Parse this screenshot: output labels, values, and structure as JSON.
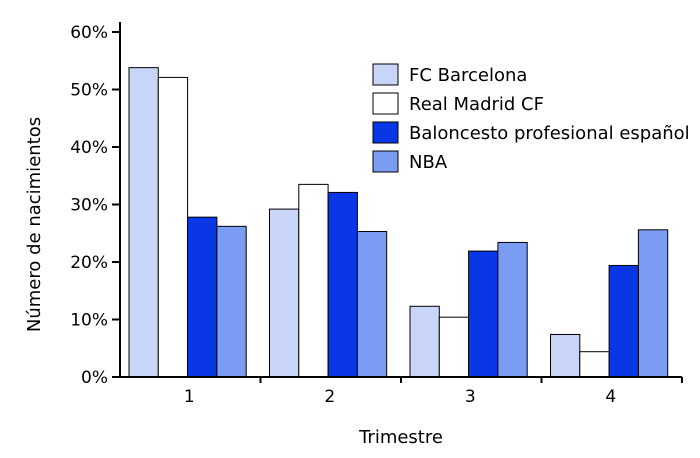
{
  "chart_data": {
    "type": "bar",
    "xlabel": "Trimestre",
    "ylabel": "Número de nacimientos",
    "categories": [
      "1",
      "2",
      "3",
      "4"
    ],
    "ylim": [
      0,
      60
    ],
    "yticks": [
      0,
      10,
      20,
      30,
      40,
      50,
      60
    ],
    "ytick_suffix": "%",
    "grid": false,
    "legend_position": "top-right",
    "series": [
      {
        "name": "FC Barcelona",
        "color": "#c8d4f8",
        "values": [
          53.8,
          29.2,
          12.3,
          7.4
        ]
      },
      {
        "name": "Real Madrid CF",
        "color": "#ffffff",
        "values": [
          52.1,
          33.5,
          10.4,
          4.4
        ]
      },
      {
        "name": "Baloncesto profesional español",
        "color": "#0a37e6",
        "values": [
          27.8,
          32.1,
          21.9,
          19.4
        ]
      },
      {
        "name": "NBA",
        "color": "#7b9cf3",
        "values": [
          26.2,
          25.3,
          23.4,
          25.6
        ]
      }
    ]
  }
}
